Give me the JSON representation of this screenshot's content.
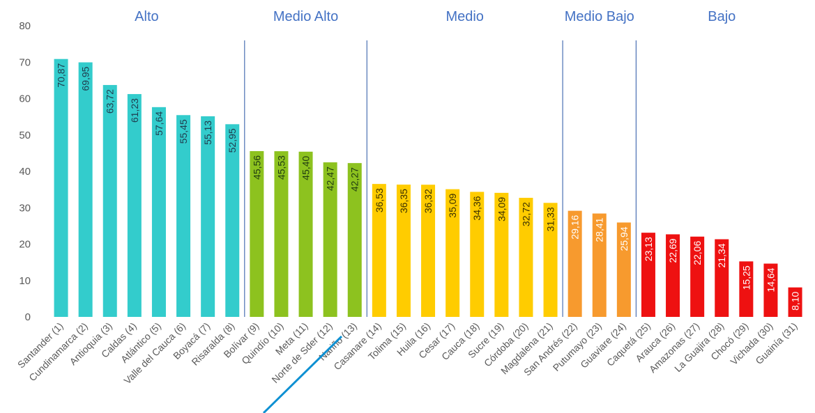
{
  "chart_data": {
    "type": "bar",
    "title": "",
    "xlabel": "",
    "ylabel": "",
    "ylim": [
      0,
      80
    ],
    "yticks": [
      0,
      10,
      20,
      30,
      40,
      50,
      60,
      70,
      80
    ],
    "grid": false,
    "legend": "none",
    "categories": [
      "Santander (1)",
      "Cundinamarca (2)",
      "Antioquia (3)",
      "Caldas (4)",
      "Atlántico (5)",
      "Valle del Cauca (6)",
      "Boyacá (7)",
      "Risaralda (8)",
      "Bolívar (9)",
      "Quindío (10)",
      "Meta (11)",
      "Norte de Sder (12)",
      "Nariño (13)",
      "Casanare (14)",
      "Tolima (15)",
      "Huila (16)",
      "Cesar (17)",
      "Cauca (18)",
      "Sucre (19)",
      "Córdoba (20)",
      "Magdalena (21)",
      "San Andrés (22)",
      "Putumayo (23)",
      "Guaviare (24)",
      "Caquetá (25)",
      "Arauca (26)",
      "Amazonas (27)",
      "La Guajira (28)",
      "Chocó (29)",
      "Vichada (30)",
      "Guainía (31)"
    ],
    "values": [
      70.87,
      69.95,
      63.72,
      61.23,
      57.64,
      55.45,
      55.13,
      52.95,
      45.56,
      45.53,
      45.4,
      42.47,
      42.27,
      36.53,
      36.35,
      36.32,
      35.09,
      34.36,
      34.09,
      32.72,
      31.33,
      29.16,
      28.41,
      25.94,
      23.13,
      22.69,
      22.06,
      21.34,
      15.25,
      14.64,
      8.1
    ],
    "value_labels": [
      "70,87",
      "69,95",
      "63,72",
      "61,23",
      "57,64",
      "55,45",
      "55,13",
      "52,95",
      "45,56",
      "45,53",
      "45,40",
      "42,47",
      "42,27",
      "36,53",
      "36,35",
      "36,32",
      "35,09",
      "34,36",
      "34,09",
      "32,72",
      "31,33",
      "29,16",
      "28,41",
      "25,94",
      "23,13",
      "22,69",
      "22,06",
      "21,34",
      "15,25",
      "14,64",
      "8,10"
    ],
    "groups": [
      {
        "name": "Alto",
        "start": 0,
        "end": 7,
        "color": "#33cccc",
        "label_color": "#1f3b4d"
      },
      {
        "name": "Medio Alto",
        "start": 8,
        "end": 12,
        "color": "#8dc21f",
        "label_color": "#1f3b10"
      },
      {
        "name": "Medio",
        "start": 13,
        "end": 20,
        "color": "#ffcc00",
        "label_color": "#3a3000"
      },
      {
        "name": "Medio Bajo",
        "start": 21,
        "end": 23,
        "color": "#f79a2e",
        "label_color": "#ffffff"
      },
      {
        "name": "Bajo",
        "start": 24,
        "end": 30,
        "color": "#ee1111",
        "label_color": "#ffffff"
      }
    ],
    "separator_color": "#4a6fb3",
    "annotation_line_color": "#0e90d2"
  }
}
